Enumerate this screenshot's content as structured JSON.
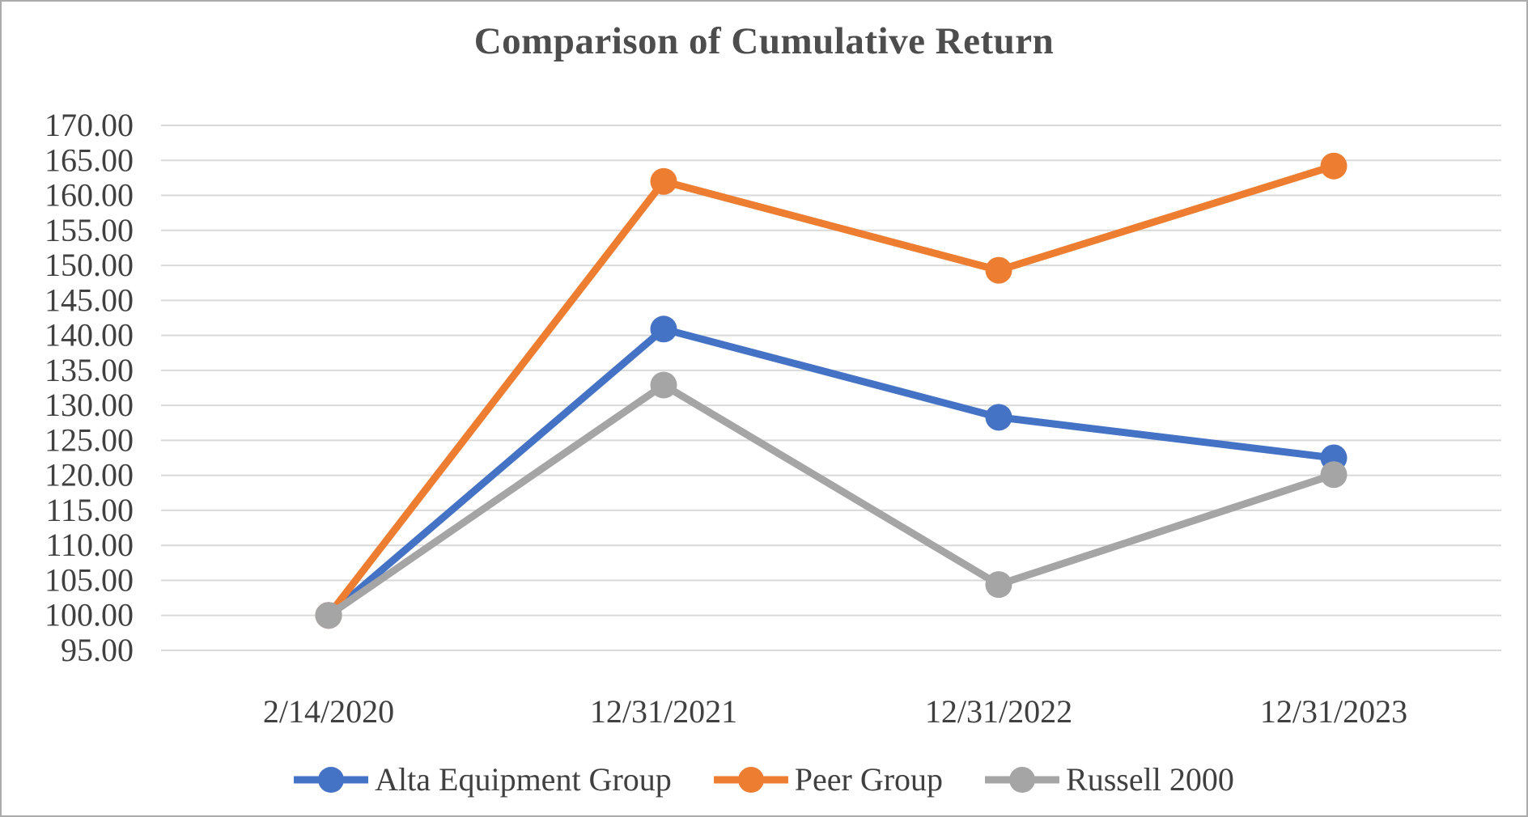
{
  "chart_data": {
    "type": "line",
    "title": "Comparison of Cumulative Return",
    "x_categories": [
      "2/14/2020",
      "12/31/2021",
      "12/31/2022",
      "12/31/2023"
    ],
    "series": [
      {
        "name": "Alta Equipment Group",
        "color": "#4472C4",
        "values": [
          100.0,
          140.9,
          128.3,
          122.5
        ]
      },
      {
        "name": "Peer Group",
        "color": "#ED7D31",
        "values": [
          100.0,
          162.0,
          149.3,
          164.2
        ]
      },
      {
        "name": "Russell 2000",
        "color": "#A5A5A5",
        "values": [
          100.0,
          132.9,
          104.4,
          120.1
        ]
      }
    ],
    "y_axis": {
      "min": 95,
      "max": 170,
      "step": 5,
      "ticks": [
        "170.00",
        "165.00",
        "160.00",
        "155.00",
        "150.00",
        "145.00",
        "140.00",
        "135.00",
        "130.00",
        "125.00",
        "120.00",
        "115.00",
        "110.00",
        "105.00",
        "100.00",
        "95.00"
      ]
    },
    "grid": "horizontal-only",
    "legend_position": "bottom-center",
    "marker": "circle"
  },
  "styles": {
    "gridline_color": "#d9d9d9",
    "border_color": "#ababab",
    "title_color": "#4d4d4d",
    "axis_label_color": "#404040",
    "background": "#ffffff"
  }
}
